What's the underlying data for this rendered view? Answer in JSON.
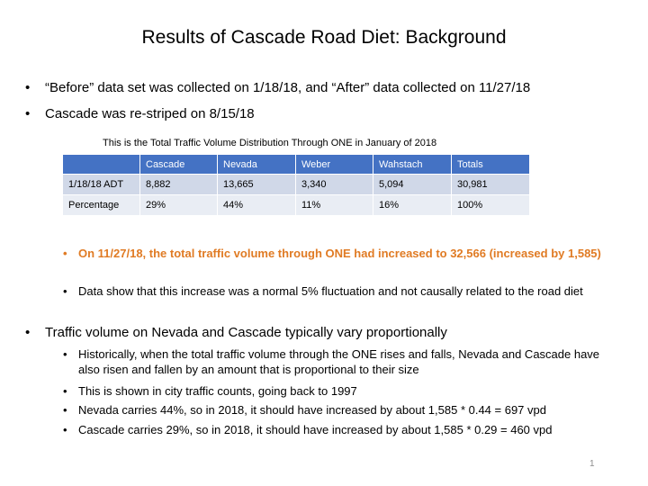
{
  "title": "Results of Cascade Road Diet: Background",
  "bullets_top": [
    {
      "text": "“Before” data set was collected on 1/18/18, and “After” data collected on 11/27/18"
    },
    {
      "text": "Cascade was re-striped on 8/15/18"
    }
  ],
  "table": {
    "caption": "This is the Total Traffic Volume Distribution Through ONE in January of 2018",
    "header": [
      "",
      "Cascade",
      "Nevada",
      "Weber",
      "Wahstach",
      "Totals"
    ],
    "rows": [
      [
        "1/18/18 ADT",
        "8,882",
        "13,665",
        "3,340",
        "5,094",
        "30,981"
      ],
      [
        "Percentage",
        "29%",
        "44%",
        "11%",
        "16%",
        "100%"
      ]
    ]
  },
  "sub_bullets_a": [
    {
      "text": "On 11/27/18, the total traffic volume through ONE had increased to 32,566 (increased by 1,585)",
      "color": "#e07b24"
    },
    {
      "text": "Data show that this increase was a normal 5% fluctuation and not causally related to the road diet"
    }
  ],
  "bullet_mid": {
    "text": "Traffic volume on Nevada and Cascade typically vary proportionally"
  },
  "sub_bullets_b": [
    {
      "text": "Historically, when the total traffic volume through the ONE rises and falls, Nevada and Cascade have also risen and fallen by an amount that is proportional to their size"
    },
    {
      "text": "This is shown in city traffic counts, going back to 1997"
    },
    {
      "text": "Nevada carries 44%, so in 2018, it should have increased by about 1,585 * 0.44 = 697 vpd"
    },
    {
      "text": "Cascade carries 29%, so in 2018, it should have increased by about 1,585 * 0.29 = 460 vpd"
    }
  ],
  "page_number": "1",
  "colors": {
    "table_header": "#4472c4",
    "row_odd": "#d0d8e8",
    "row_even": "#e9edf4",
    "highlight": "#e07b24"
  },
  "bullet_glyph": "•"
}
